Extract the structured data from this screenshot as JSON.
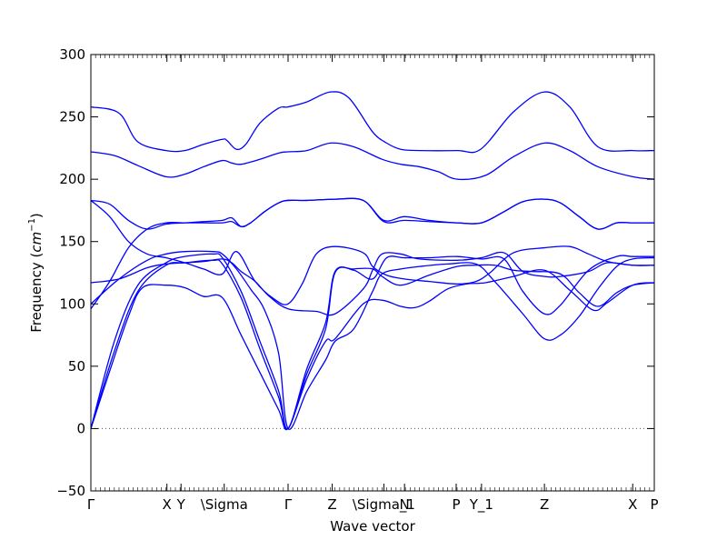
{
  "chart_data": {
    "type": "line",
    "title": "",
    "xlabel": "Wave vector",
    "ylabel_prefix": "Frequency (",
    "ylabel_unit": "cm",
    "ylabel_exp": "−1",
    "ylabel_suffix": ")",
    "ylim": [
      -50,
      300
    ],
    "yticks": [
      -50,
      0,
      50,
      100,
      150,
      200,
      250,
      300
    ],
    "xlim": [
      0,
      6.0
    ],
    "grid": false,
    "legend": "none",
    "line_color": "#0000ff",
    "zero_line_color": "#555555",
    "x_ticks": [
      {
        "label": "Γ",
        "x": 0.0
      },
      {
        "label": "X",
        "x": 0.81
      },
      {
        "label": "Y",
        "x": 0.96
      },
      {
        "label": "\\Sigma",
        "x": 1.42
      },
      {
        "label": "Γ",
        "x": 2.1
      },
      {
        "label": "Z",
        "x": 2.57
      },
      {
        "label": "\\Sigma_1",
        "x": 3.12
      },
      {
        "label": "N",
        "x": 3.34
      },
      {
        "label": "P",
        "x": 3.89
      },
      {
        "label": "Y_1",
        "x": 4.16
      },
      {
        "label": "Z",
        "x": 4.83
      },
      {
        "label": "X",
        "x": 5.77
      },
      {
        "label": "P",
        "x": 6.0
      }
    ],
    "series": [
      {
        "x": [
          0,
          0.3,
          0.5,
          0.8,
          1.0,
          1.2,
          1.4,
          1.45,
          1.55,
          1.65,
          1.8,
          2.0,
          2.1,
          2.3,
          2.55,
          2.75,
          3.0,
          3.15,
          3.3,
          3.5,
          3.9,
          4.15,
          4.5,
          4.83,
          5.1,
          5.4,
          5.77,
          6.0
        ],
        "y": [
          258,
          253,
          230,
          223,
          223,
          228,
          232,
          231,
          224,
          228,
          245,
          257,
          258,
          262,
          270,
          265,
          238,
          229,
          224,
          223,
          223,
          224,
          254,
          270,
          258,
          226,
          223,
          223
        ]
      },
      {
        "x": [
          0,
          0.25,
          0.5,
          0.8,
          1.0,
          1.2,
          1.4,
          1.5,
          1.6,
          1.8,
          2.0,
          2.1,
          2.3,
          2.55,
          2.8,
          3.1,
          3.3,
          3.5,
          3.7,
          3.9,
          4.2,
          4.5,
          4.83,
          5.1,
          5.4,
          5.77,
          6.0
        ],
        "y": [
          222,
          219,
          211,
          202,
          204,
          210,
          215,
          213,
          212,
          216,
          221,
          222,
          223,
          229,
          226,
          216,
          212,
          210,
          206,
          200,
          203,
          218,
          229,
          223,
          210,
          202,
          200
        ]
      },
      {
        "x": [
          0,
          0.2,
          0.4,
          0.6,
          0.8,
          1.0,
          1.2,
          1.4,
          1.5,
          1.6,
          1.7,
          1.85,
          2.0,
          2.1,
          2.3,
          2.6,
          2.9,
          3.12,
          3.34,
          3.6,
          3.9,
          4.16,
          4.4,
          4.6,
          4.83,
          5.0,
          5.2,
          5.4,
          5.6,
          5.77,
          6.0
        ],
        "y": [
          183,
          180,
          167,
          160,
          164,
          165,
          166,
          167,
          169,
          162,
          165,
          174,
          181,
          183,
          183,
          184,
          183,
          167,
          170,
          167,
          165,
          165,
          174,
          182,
          184,
          181,
          170,
          160,
          165,
          165,
          165
        ]
      },
      {
        "x": [
          0,
          0.2,
          0.4,
          0.6,
          0.8,
          1.0,
          1.2,
          1.4,
          1.5,
          1.6,
          1.7,
          1.85,
          2.0,
          2.1,
          2.3,
          2.6,
          2.9,
          3.12,
          3.34,
          3.6,
          3.9,
          4.16,
          4.4,
          4.6,
          4.83,
          5.0,
          5.2,
          5.4,
          5.6,
          5.77,
          6.0
        ],
        "y": [
          96,
          118,
          145,
          160,
          165,
          165,
          165,
          165,
          166,
          162,
          165,
          174,
          181,
          183,
          183,
          184,
          183,
          166,
          167,
          166,
          165,
          165,
          174,
          182,
          184,
          181,
          170,
          160,
          165,
          165,
          165
        ]
      },
      {
        "x": [
          0,
          0.2,
          0.4,
          0.6,
          0.8,
          1.0,
          1.2,
          1.4,
          1.55,
          1.75,
          1.95,
          2.1,
          2.25,
          2.4,
          2.6,
          2.9,
          3.0,
          3.15,
          3.34,
          3.6,
          3.9,
          4.1,
          4.25,
          4.5,
          4.83,
          5.1,
          5.3,
          5.5,
          5.77,
          6.0
        ],
        "y": [
          183,
          170,
          150,
          140,
          137,
          133,
          128,
          124,
          142,
          118,
          104,
          100,
          116,
          140,
          146,
          141,
          130,
          123,
          120,
          118,
          116,
          118,
          125,
          141,
          145,
          146,
          140,
          134,
          131,
          131
        ]
      },
      {
        "x": [
          0,
          0.3,
          0.6,
          0.8,
          1.0,
          1.2,
          1.4,
          1.5,
          1.6,
          1.75,
          1.9,
          2.1,
          2.4,
          2.6,
          2.9,
          3.0,
          3.1,
          3.3,
          3.5,
          3.9,
          4.16,
          4.4,
          4.6,
          4.83,
          5.0,
          5.3,
          5.5,
          5.77,
          6.0
        ],
        "y": [
          117,
          120,
          129,
          132,
          133,
          134,
          136,
          133,
          126,
          118,
          106,
          96,
          94,
          92,
          112,
          127,
          140,
          140,
          136,
          135,
          137,
          141,
          126,
          122,
          122,
          126,
          133,
          131,
          131
        ]
      },
      {
        "x": [
          0,
          0.3,
          0.6,
          0.8,
          1.0,
          1.3,
          1.4,
          1.55,
          1.7,
          1.85,
          2.0,
          2.1,
          2.3,
          2.5,
          2.6,
          2.8,
          3.0,
          3.1,
          3.3,
          3.5,
          3.8,
          4.1,
          4.3,
          4.6,
          4.83,
          5.0,
          5.2,
          5.4,
          5.6,
          5.77,
          6.0
        ],
        "y": [
          100,
          120,
          135,
          140,
          142,
          142,
          140,
          128,
          112,
          95,
          60,
          0,
          30,
          55,
          70,
          80,
          110,
          124,
          128,
          130,
          132,
          132,
          118,
          92,
          72,
          75,
          90,
          112,
          130,
          136,
          137
        ]
      },
      {
        "x": [
          0,
          0.25,
          0.5,
          0.8,
          1.0,
          1.3,
          1.4,
          1.6,
          1.8,
          2.0,
          2.1,
          2.3,
          2.5,
          2.6,
          2.8,
          3.0,
          3.15,
          3.34,
          3.6,
          3.9,
          4.16,
          4.4,
          4.6,
          4.83,
          5.0,
          5.3,
          5.6,
          5.77,
          6.0
        ],
        "y": [
          0,
          70,
          115,
          133,
          138,
          140,
          137,
          110,
          70,
          30,
          0,
          48,
          85,
          126,
          127,
          120,
          137,
          137,
          137,
          138,
          136,
          136,
          110,
          92,
          99,
          127,
          138,
          138,
          138
        ]
      },
      {
        "x": [
          0,
          0.25,
          0.5,
          0.8,
          1.0,
          1.3,
          1.4,
          1.6,
          1.8,
          2.0,
          2.1,
          2.3,
          2.5,
          2.6,
          2.8,
          3.0,
          3.1,
          3.3,
          3.6,
          3.9,
          4.1,
          4.3,
          4.5,
          4.7,
          5.0,
          5.2,
          5.4,
          5.6,
          5.77,
          6.0
        ],
        "y": [
          0,
          62,
          110,
          131,
          133,
          135,
          132,
          105,
          64,
          25,
          0,
          44,
          80,
          125,
          128,
          128,
          122,
          115,
          123,
          130,
          131,
          131,
          127,
          126,
          124,
          109,
          98,
          109,
          115,
          117
        ]
      },
      {
        "x": [
          0,
          0.2,
          0.4,
          0.55,
          0.8,
          1.0,
          1.2,
          1.4,
          1.6,
          1.8,
          2.0,
          2.1,
          2.3,
          2.5,
          2.6,
          2.9,
          3.1,
          3.3,
          3.45,
          3.6,
          3.8,
          4.0,
          4.2,
          4.5,
          4.83,
          5.1,
          5.35,
          5.5,
          5.77,
          6.0
        ],
        "y": [
          0,
          46,
          90,
          113,
          115,
          113,
          106,
          105,
          75,
          45,
          15,
          0,
          40,
          70,
          72,
          100,
          103,
          98,
          97,
          102,
          112,
          116,
          117,
          122,
          127,
          111,
          95,
          101,
          115,
          117
        ]
      }
    ]
  }
}
